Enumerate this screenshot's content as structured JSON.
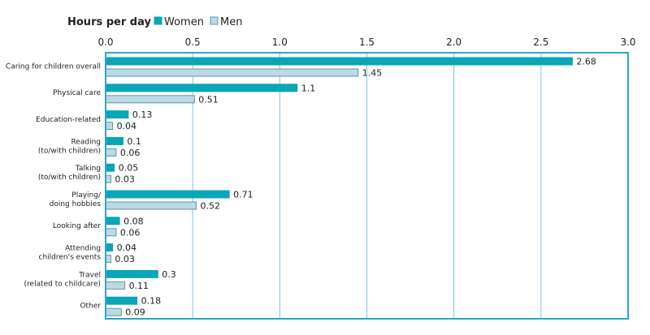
{
  "chart_data": {
    "type": "bar",
    "orientation": "horizontal",
    "legend_title": "Hours per day",
    "categories": [
      [
        "Caring for children overall"
      ],
      [
        "Physical care"
      ],
      [
        "Education-related"
      ],
      [
        "Reading",
        "(to/with children)"
      ],
      [
        "Talking",
        "(to/with children)"
      ],
      [
        "Playing/",
        "doing hobbies"
      ],
      [
        "Looking after"
      ],
      [
        "Attending",
        "children's events"
      ],
      [
        "Travel",
        "(related to childcare)"
      ],
      [
        "Other"
      ]
    ],
    "series": [
      {
        "name": "Women",
        "color": "#0aa5b7",
        "stroke": "#0aa5b7",
        "values": [
          2.68,
          1.1,
          0.13,
          0.1,
          0.05,
          0.71,
          0.08,
          0.04,
          0.3,
          0.18
        ],
        "labels": [
          "2.68",
          "1.1",
          "0.13",
          "0.1",
          "0.05",
          "0.71",
          "0.08",
          "0.04",
          "0.3",
          "0.18"
        ]
      },
      {
        "name": "Men",
        "color": "#b9dbe6",
        "stroke": "#6d8ea3",
        "values": [
          1.45,
          0.51,
          0.04,
          0.06,
          0.03,
          0.52,
          0.06,
          0.03,
          0.11,
          0.09
        ],
        "labels": [
          "1.45",
          "0.51",
          "0.04",
          "0.06",
          "0.03",
          "0.52",
          "0.06",
          "0.03",
          "0.11",
          "0.09"
        ]
      }
    ],
    "xlim": [
      0,
      3.0
    ],
    "xticks": [
      0,
      0.5,
      1.0,
      1.5,
      2.0,
      2.5,
      3.0
    ],
    "xtick_labels": [
      "0.0",
      "0.5",
      "1.0",
      "1.5",
      "2.0",
      "2.5",
      "3.0"
    ],
    "grid": true,
    "frame_color": "#2aa7c9",
    "grid_color": "#7cc8dc"
  }
}
